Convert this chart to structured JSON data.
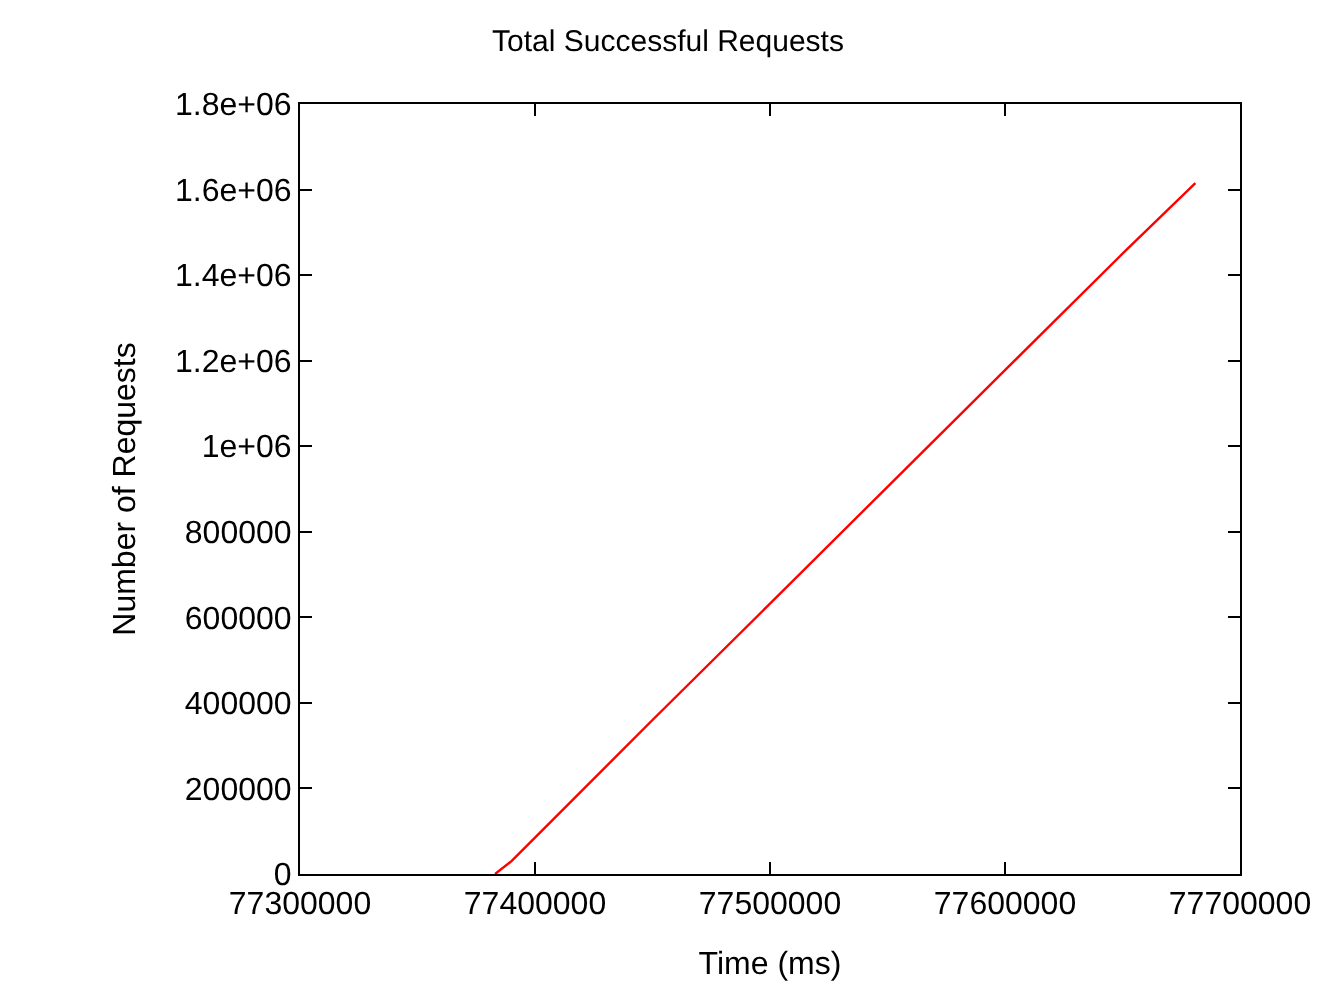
{
  "chart_data": {
    "type": "line",
    "title": "Total Successful Requests",
    "xlabel": "Time (ms)",
    "ylabel": "Number of Requests",
    "x": [
      77383000,
      77390000,
      77400000,
      77450000,
      77500000,
      77550000,
      77600000,
      77650000,
      77681000
    ],
    "series": [
      {
        "color": "#ff0000",
        "values": [
          0,
          30000,
          85000,
          360000,
          632000,
          905000,
          1178000,
          1450000,
          1615000
        ]
      }
    ],
    "xlim": [
      77300000,
      77700000
    ],
    "xticks": [
      77300000,
      77400000,
      77500000,
      77600000,
      77700000
    ],
    "ylim": [
      0,
      1800000
    ],
    "yticks": [
      0,
      200000,
      400000,
      600000,
      800000,
      {
        "value": 1000000,
        "label": "1e+06"
      },
      {
        "value": 1200000,
        "label": "1.2e+06"
      },
      {
        "value": 1400000,
        "label": "1.4e+06"
      },
      {
        "value": 1600000,
        "label": "1.6e+06"
      },
      {
        "value": 1800000,
        "label": "1.8e+06"
      }
    ],
    "line_style": "solid",
    "marker": "none"
  }
}
